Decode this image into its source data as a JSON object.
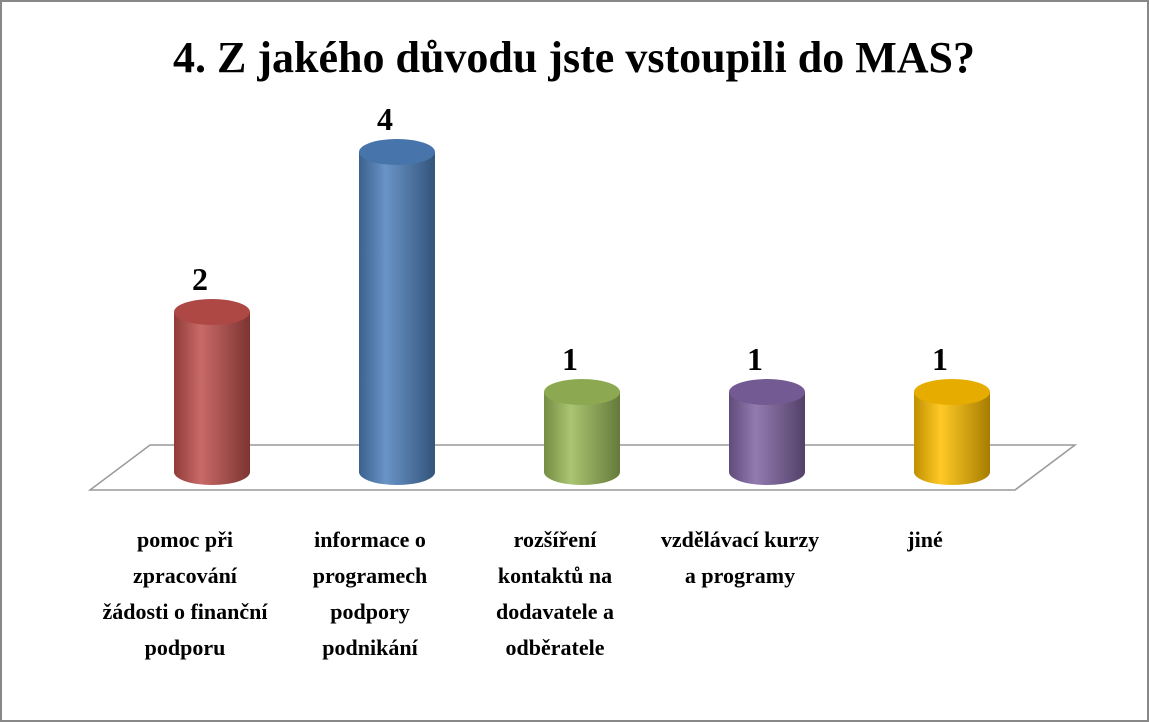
{
  "chart_data": {
    "type": "bar3d",
    "title": "4. Z jakého důvodu jste vstoupili do MAS?",
    "categories": [
      "pomoc při zpracování žádosti o finanční podporu",
      "informace o programech podpory podnikání",
      "rozšíření kontaktů na dodavatele a odběratele",
      "vzdělávací kurzy a programy",
      "jiné"
    ],
    "values": [
      2,
      4,
      1,
      1,
      1
    ],
    "colors": [
      "#c0504d",
      "#4f81bd",
      "#9bbb59",
      "#8064a2",
      "#ffc000"
    ]
  }
}
